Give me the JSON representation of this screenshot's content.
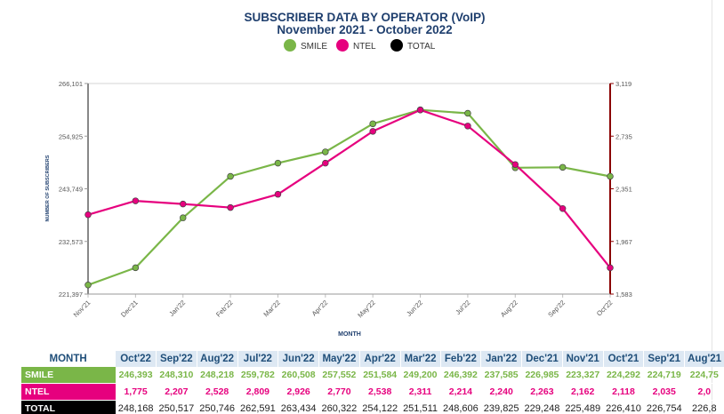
{
  "colors": {
    "title": "#1f3f6e",
    "smile": "#7ab648",
    "ntel": "#e6007e",
    "total": "#000000",
    "axis_left": "#888888",
    "axis_right": "#8b0000"
  },
  "chart_data": {
    "type": "line",
    "title": "SUBSCRIBER DATA BY OPERATOR (VoIP)",
    "subtitle": "November 2021 - October 2022",
    "xlabel": "MONTH",
    "ylabel": "NUMBER OF SUBSCRIBERS",
    "legend_position": "top-center",
    "grid": false,
    "legend": [
      {
        "name": "SMILE",
        "color": "#7ab648"
      },
      {
        "name": "NTEL",
        "color": "#e6007e"
      },
      {
        "name": "TOTAL",
        "color": "#000000"
      }
    ],
    "categories": [
      "Nov'21",
      "Dec'21",
      "Jan'22",
      "Feb'22",
      "Mar'22",
      "Apr'22",
      "May'22",
      "Jun'22",
      "Jul'22",
      "Aug'22",
      "Sep'22",
      "Oct'22"
    ],
    "y_left": {
      "min": 221397,
      "max": 266101,
      "ticks": [
        "221,397",
        "232,573",
        "243,749",
        "254,925",
        "266,101"
      ]
    },
    "y_right": {
      "min": 1583,
      "max": 3119,
      "ticks": [
        "1,583",
        "1,967",
        "2,351",
        "2,735",
        "3,119"
      ]
    },
    "series": [
      {
        "name": "SMILE",
        "axis": "left",
        "color": "#7ab648",
        "values": [
          223327,
          226985,
          237585,
          246392,
          249200,
          251584,
          257552,
          260508,
          259782,
          248218,
          248310,
          246393
        ]
      },
      {
        "name": "NTEL",
        "axis": "right",
        "color": "#e6007e",
        "values": [
          2162,
          2263,
          2240,
          2214,
          2311,
          2538,
          2770,
          2926,
          2809,
          2528,
          2207,
          1775
        ]
      }
    ]
  },
  "table": {
    "month_header": "MONTH",
    "columns": [
      "Oct'22",
      "Sep'22",
      "Aug'22",
      "Jul'22",
      "Jun'22",
      "May'22",
      "Apr'22",
      "Mar'22",
      "Feb'22",
      "Jan'22",
      "Dec'21",
      "Nov'21",
      "Oct'21",
      "Sep'21",
      "Aug'21"
    ],
    "rows": [
      {
        "label": "SMILE",
        "key": "smile",
        "values": [
          "246,393",
          "248,310",
          "248,218",
          "259,782",
          "260,508",
          "257,552",
          "251,584",
          "249,200",
          "246,392",
          "237,585",
          "226,985",
          "223,327",
          "224,292",
          "224,719",
          "224,75"
        ]
      },
      {
        "label": "NTEL",
        "key": "ntel",
        "values": [
          "1,775",
          "2,207",
          "2,528",
          "2,809",
          "2,926",
          "2,770",
          "2,538",
          "2,311",
          "2,214",
          "2,240",
          "2,263",
          "2,162",
          "2,118",
          "2,035",
          "2,0"
        ]
      },
      {
        "label": "TOTAL",
        "key": "total",
        "values": [
          "248,168",
          "250,517",
          "250,746",
          "262,591",
          "263,434",
          "260,322",
          "254,122",
          "251,511",
          "248,606",
          "239,825",
          "229,248",
          "225,489",
          "226,410",
          "226,754",
          "226,8"
        ]
      }
    ]
  }
}
